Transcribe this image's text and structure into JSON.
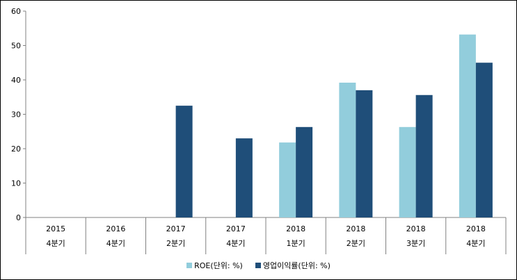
{
  "chart_data": {
    "type": "bar",
    "categories": [
      [
        "2015",
        "4분기"
      ],
      [
        "2016",
        "4분기"
      ],
      [
        "2017",
        "2분기"
      ],
      [
        "2017",
        "4분기"
      ],
      [
        "2018",
        "1분기"
      ],
      [
        "2018",
        "2분기"
      ],
      [
        "2018",
        "3분기"
      ],
      [
        "2018",
        "4분기"
      ]
    ],
    "series": [
      {
        "name": "ROE(단위: %)",
        "color": "#92cddc",
        "values": [
          null,
          null,
          null,
          null,
          21.8,
          39.2,
          26.3,
          53.2
        ]
      },
      {
        "name": "영업이익률(단위: %)",
        "color": "#1f4e79",
        "values": [
          null,
          null,
          32.5,
          23.0,
          26.3,
          37.0,
          35.6,
          45.0
        ]
      }
    ],
    "ylim": [
      0,
      60
    ],
    "yticks": [
      0,
      10,
      20,
      30,
      40,
      50,
      60
    ],
    "grid": false,
    "legend_position": "bottom"
  }
}
